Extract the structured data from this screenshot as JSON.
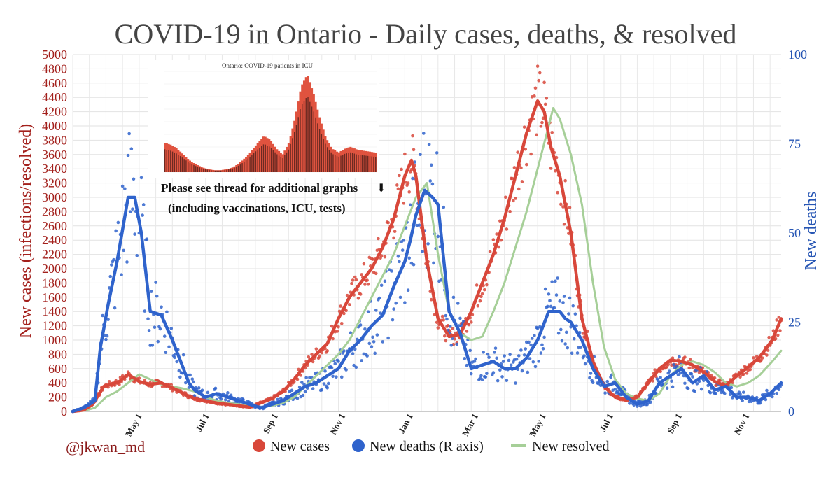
{
  "chart_data": {
    "type": "line",
    "title": "COVID-19 in Ontario - Daily cases, deaths, & resolved",
    "ylabel_left": "New cases (infections/resolved)",
    "ylabel_right": "New deaths",
    "ylim_left": [
      0,
      5000
    ],
    "ylim_right": [
      0,
      100
    ],
    "left_ticks": [
      "0",
      "200",
      "400",
      "600",
      "800",
      "1000",
      "1200",
      "1400",
      "1600",
      "1800",
      "2000",
      "2200",
      "2400",
      "2600",
      "2800",
      "3000",
      "3200",
      "3400",
      "3600",
      "3800",
      "4000",
      "4200",
      "4400",
      "4600",
      "4800",
      "5000"
    ],
    "right_ticks": [
      "0",
      "25",
      "50",
      "75",
      "100"
    ],
    "x_ticks": [
      "May 1",
      "Jul 1",
      "Sep 1",
      "Nov 1",
      "Jan 1",
      "Mar 1",
      "May 1",
      "Jul 1",
      "Sep 1",
      "Nov 1"
    ],
    "x_tick_days": [
      60,
      121,
      183,
      244,
      305,
      364,
      425,
      486,
      548,
      609
    ],
    "grid": true,
    "legend_position": "bottom",
    "colors": {
      "cases": "#d8473a",
      "deaths": "#2f63cc",
      "resolved": "#a6cf98",
      "left_axis": "#a3201c",
      "right_axis": "#2756b4",
      "title": "#444444"
    },
    "series": [
      {
        "name": "New cases",
        "axis": "left",
        "color": "#d8473a",
        "x": [
          0,
          10,
          18,
          28,
          42,
          50,
          60,
          70,
          80,
          90,
          100,
          110,
          120,
          130,
          140,
          150,
          160,
          170,
          180,
          190,
          200,
          210,
          220,
          230,
          240,
          250,
          260,
          270,
          280,
          290,
          300,
          306,
          310,
          320,
          330,
          340,
          350,
          360,
          370,
          380,
          390,
          400,
          410,
          420,
          426,
          432,
          440,
          450,
          460,
          470,
          480,
          490,
          500,
          510,
          520,
          530,
          540,
          550,
          560,
          570,
          580,
          590,
          600,
          610,
          620,
          632,
          640
        ],
        "values": [
          0,
          20,
          100,
          350,
          420,
          520,
          420,
          380,
          400,
          330,
          250,
          180,
          150,
          120,
          100,
          80,
          60,
          120,
          180,
          280,
          450,
          650,
          800,
          950,
          1300,
          1600,
          1800,
          2000,
          2300,
          2700,
          3300,
          3520,
          3300,
          2100,
          1300,
          1050,
          1080,
          1400,
          1800,
          2200,
          2700,
          3300,
          3900,
          4350,
          4200,
          3700,
          3300,
          2500,
          1300,
          700,
          350,
          200,
          160,
          200,
          400,
          600,
          720,
          700,
          650,
          550,
          420,
          360,
          500,
          620,
          750,
          1000,
          1300
        ]
      },
      {
        "name": "New deaths (R axis)",
        "axis": "right",
        "color": "#2f63cc",
        "x": [
          0,
          10,
          20,
          25,
          32,
          40,
          50,
          56,
          62,
          70,
          80,
          90,
          100,
          105,
          110,
          120,
          130,
          140,
          150,
          160,
          170,
          180,
          190,
          200,
          210,
          220,
          230,
          240,
          250,
          260,
          270,
          280,
          290,
          300,
          305,
          310,
          318,
          325,
          330,
          340,
          350,
          360,
          370,
          380,
          390,
          400,
          410,
          420,
          430,
          440,
          445,
          450,
          460,
          470,
          480,
          490,
          500,
          510,
          520,
          530,
          540,
          550,
          560,
          570,
          580,
          590,
          600,
          610,
          620,
          630,
          640
        ],
        "values": [
          0,
          1,
          3,
          18,
          30,
          42,
          60,
          60,
          50,
          28,
          27,
          20,
          12,
          8,
          6,
          4,
          5,
          4,
          3,
          2,
          1,
          2,
          3,
          5,
          7,
          8,
          10,
          12,
          17,
          20,
          24,
          27,
          35,
          42,
          48,
          55,
          62,
          60,
          58,
          28,
          22,
          12,
          13,
          14,
          12,
          12,
          15,
          20,
          28,
          28,
          26,
          25,
          20,
          12,
          7,
          8,
          4,
          2,
          3,
          8,
          10,
          12,
          8,
          10,
          6,
          7,
          4,
          4,
          3,
          5,
          8
        ]
      },
      {
        "name": "New resolved",
        "axis": "left",
        "color": "#a6cf98",
        "x": [
          0,
          10,
          20,
          30,
          40,
          50,
          60,
          70,
          80,
          90,
          100,
          110,
          120,
          130,
          140,
          150,
          160,
          170,
          180,
          190,
          200,
          210,
          220,
          230,
          240,
          250,
          260,
          270,
          280,
          290,
          300,
          310,
          320,
          330,
          340,
          350,
          360,
          370,
          380,
          390,
          400,
          410,
          420,
          430,
          434,
          440,
          450,
          460,
          470,
          480,
          490,
          500,
          510,
          520,
          530,
          540,
          550,
          560,
          570,
          580,
          590,
          600,
          610,
          620,
          632,
          640
        ],
        "values": [
          0,
          10,
          50,
          200,
          280,
          400,
          520,
          450,
          380,
          350,
          320,
          280,
          200,
          150,
          120,
          100,
          80,
          60,
          80,
          120,
          200,
          350,
          500,
          650,
          800,
          1000,
          1300,
          1600,
          1900,
          2200,
          2600,
          3000,
          3200,
          2200,
          1400,
          1100,
          1000,
          1050,
          1400,
          1800,
          2300,
          2800,
          3400,
          4000,
          4250,
          4100,
          3600,
          2900,
          1800,
          900,
          450,
          250,
          180,
          150,
          250,
          500,
          650,
          700,
          650,
          550,
          400,
          350,
          400,
          500,
          700,
          850
        ]
      }
    ]
  },
  "inset": {
    "title": "Ontario: COVID-19 patients in ICU",
    "caption_line1": "Please see thread for additional graphs",
    "caption_arrow": "⬇",
    "caption_line2": "(including vaccinations, ICU, tests)",
    "values": [
      0.3,
      0.28,
      0.24,
      0.18,
      0.12,
      0.08,
      0.05,
      0.03,
      0.02,
      0.02,
      0.03,
      0.05,
      0.09,
      0.15,
      0.22,
      0.3,
      0.37,
      0.33,
      0.24,
      0.18,
      0.3,
      0.55,
      0.88,
      1.0,
      0.8,
      0.55,
      0.35,
      0.24,
      0.2,
      0.24,
      0.26,
      0.23,
      0.22,
      0.21,
      0.2
    ]
  },
  "watermark": "@jkwan_md"
}
